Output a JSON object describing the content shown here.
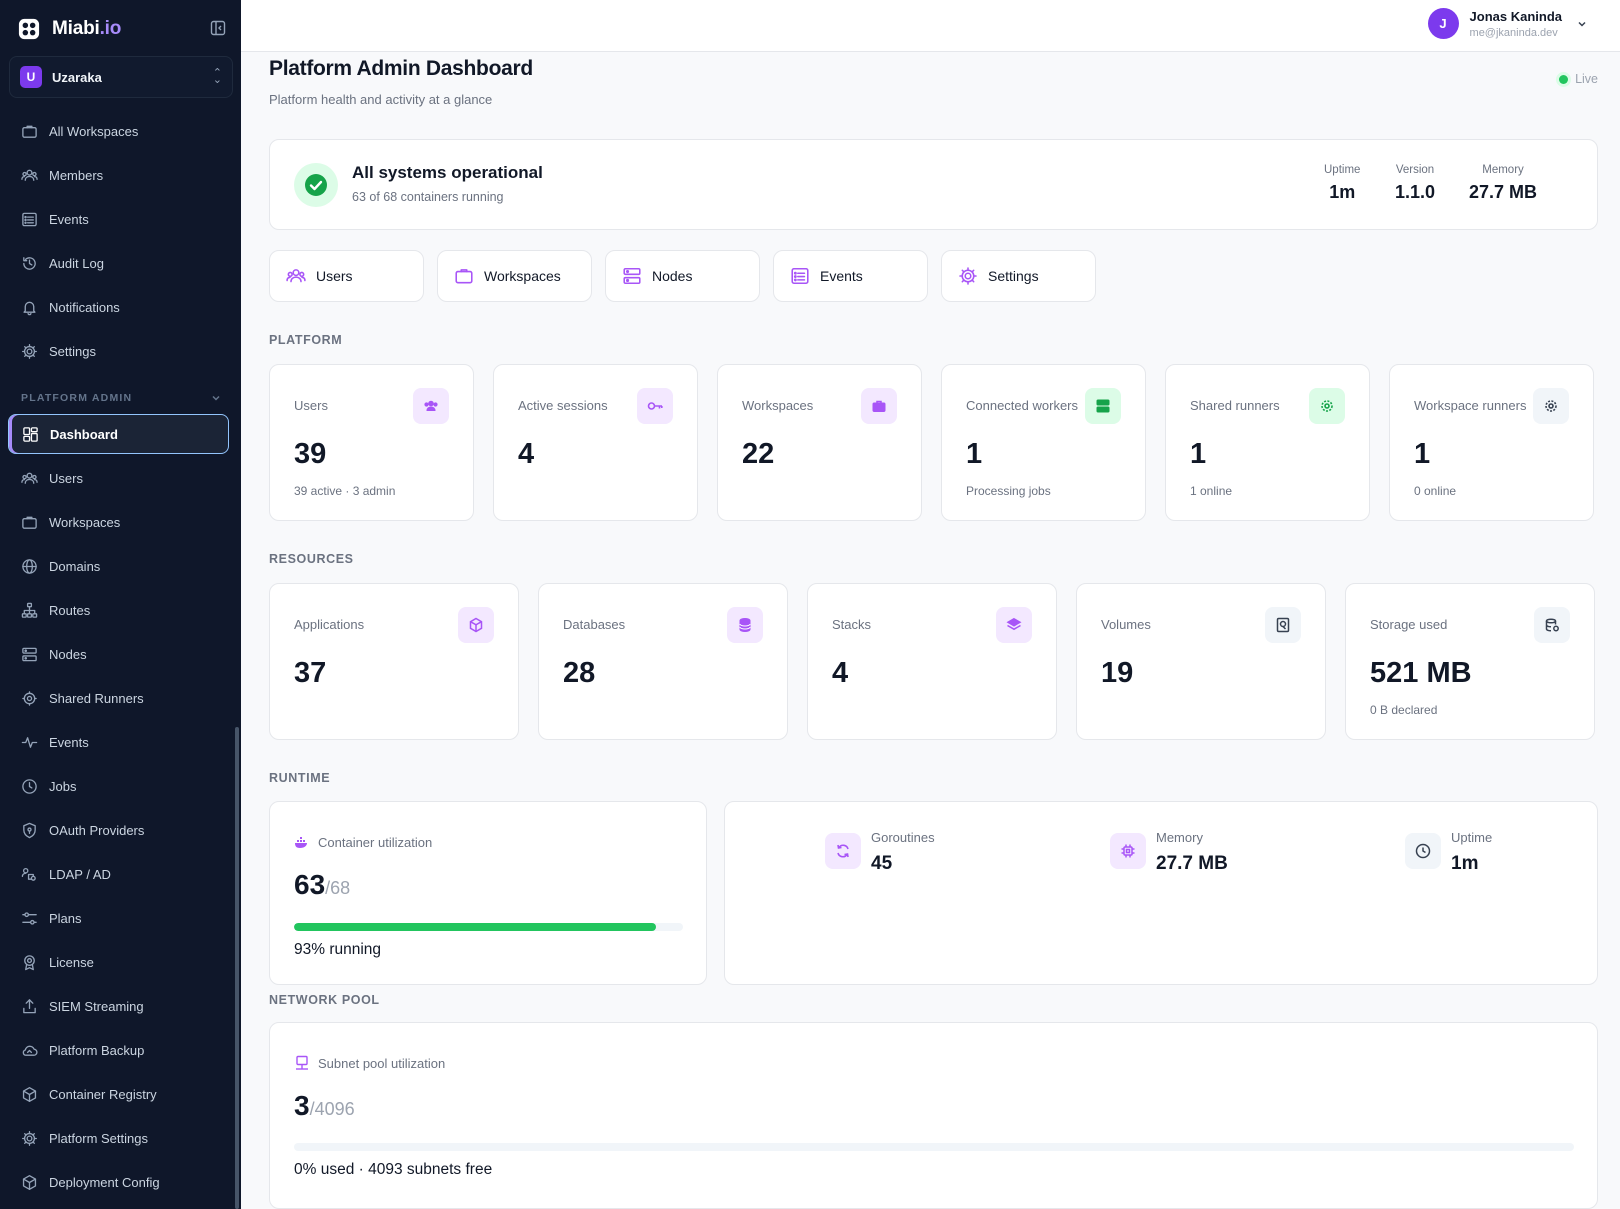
{
  "brand": {
    "name": "Miabi",
    "suffix": ".io"
  },
  "workspace": {
    "initial": "U",
    "name": "Uzaraka"
  },
  "sidebar": {
    "items": [
      {
        "label": "All Workspaces",
        "icon": "briefcase-icon"
      },
      {
        "label": "Members",
        "icon": "users-icon"
      },
      {
        "label": "Events",
        "icon": "list-icon"
      },
      {
        "label": "Audit Log",
        "icon": "history-icon"
      },
      {
        "label": "Notifications",
        "icon": "bell-icon"
      },
      {
        "label": "Settings",
        "icon": "gear-icon"
      }
    ],
    "section_label": "PLATFORM ADMIN",
    "admin_items": [
      {
        "label": "Dashboard",
        "icon": "dashboard-icon",
        "active": true
      },
      {
        "label": "Users",
        "icon": "users-icon"
      },
      {
        "label": "Workspaces",
        "icon": "briefcase-icon"
      },
      {
        "label": "Domains",
        "icon": "globe-icon"
      },
      {
        "label": "Routes",
        "icon": "sitemap-icon"
      },
      {
        "label": "Nodes",
        "icon": "server-icon"
      },
      {
        "label": "Shared Runners",
        "icon": "cog-icon"
      },
      {
        "label": "Events",
        "icon": "pulse-icon"
      },
      {
        "label": "Jobs",
        "icon": "clock-icon"
      },
      {
        "label": "OAuth Providers",
        "icon": "shield-icon"
      },
      {
        "label": "LDAP / AD",
        "icon": "user-network-icon"
      },
      {
        "label": "Plans",
        "icon": "sliders-icon"
      },
      {
        "label": "License",
        "icon": "badge-icon"
      },
      {
        "label": "SIEM Streaming",
        "icon": "upload-icon"
      },
      {
        "label": "Platform Backup",
        "icon": "cloud-icon"
      },
      {
        "label": "Container Registry",
        "icon": "cube-icon"
      },
      {
        "label": "Platform Settings",
        "icon": "gear-icon"
      },
      {
        "label": "Deployment Config",
        "icon": "cube-icon"
      }
    ]
  },
  "user": {
    "initial": "J",
    "name": "Jonas Kaninda",
    "email": "me@jkaninda.dev"
  },
  "header": {
    "title": "Platform Admin Dashboard",
    "subtitle": "Platform health and activity at a glance",
    "live_label": "Live"
  },
  "status": {
    "title": "All systems operational",
    "subtitle": "63 of 68 containers running",
    "uptime_label": "Uptime",
    "uptime": "1m",
    "version_label": "Version",
    "version": "1.1.0",
    "memory_label": "Memory",
    "memory": "27.7 MB"
  },
  "quick_links": [
    {
      "label": "Users",
      "icon": "users-icon"
    },
    {
      "label": "Workspaces",
      "icon": "briefcase-icon"
    },
    {
      "label": "Nodes",
      "icon": "server-icon"
    },
    {
      "label": "Events",
      "icon": "list-icon"
    },
    {
      "label": "Settings",
      "icon": "gear-icon"
    }
  ],
  "sections": {
    "platform": "PLATFORM",
    "resources": "RESOURCES",
    "runtime": "RUNTIME",
    "network": "NETWORK POOL"
  },
  "platform_metrics": [
    {
      "label": "Users",
      "value": "39",
      "sub": "39 active · 3 admin",
      "icon": "users-icon",
      "tone": "purple"
    },
    {
      "label": "Active sessions",
      "value": "4",
      "sub": "",
      "icon": "key-icon",
      "tone": "purple"
    },
    {
      "label": "Workspaces",
      "value": "22",
      "sub": "",
      "icon": "briefcase-icon",
      "tone": "purple"
    },
    {
      "label": "Connected workers",
      "value": "1",
      "sub": "Processing jobs",
      "icon": "server-icon",
      "tone": "green"
    },
    {
      "label": "Shared runners",
      "value": "1",
      "sub": "1 online",
      "icon": "cog-icon",
      "tone": "green"
    },
    {
      "label": "Workspace runners",
      "value": "1",
      "sub": "0 online",
      "icon": "cog-icon",
      "tone": "gray"
    }
  ],
  "resource_metrics": [
    {
      "label": "Applications",
      "value": "37",
      "sub": "",
      "icon": "cube-icon",
      "tone": "purple"
    },
    {
      "label": "Databases",
      "value": "28",
      "sub": "",
      "icon": "database-icon",
      "tone": "purple"
    },
    {
      "label": "Stacks",
      "value": "4",
      "sub": "",
      "icon": "layers-icon",
      "tone": "purple"
    },
    {
      "label": "Volumes",
      "value": "19",
      "sub": "",
      "icon": "disk-icon",
      "tone": "gray"
    },
    {
      "label": "Storage used",
      "value": "521 MB",
      "sub": "0 B declared",
      "icon": "storage-icon",
      "tone": "gray"
    }
  ],
  "container_util": {
    "label": "Container utilization",
    "value": "63",
    "total": "/68",
    "fraction": 0.93,
    "caption": "93% running"
  },
  "runtime": {
    "goroutines_label": "Goroutines",
    "goroutines": "45",
    "memory_label": "Memory",
    "memory": "27.7 MB",
    "uptime_label": "Uptime",
    "uptime": "1m"
  },
  "subnet_util": {
    "label": "Subnet pool utilization",
    "value": "3",
    "total": "/4096",
    "fraction": 0.0,
    "caption": "0% used · 4093 subnets free"
  },
  "colors": {
    "accent": "#7c3aed",
    "success": "#22c55e",
    "sidebar": "#0f172a"
  }
}
